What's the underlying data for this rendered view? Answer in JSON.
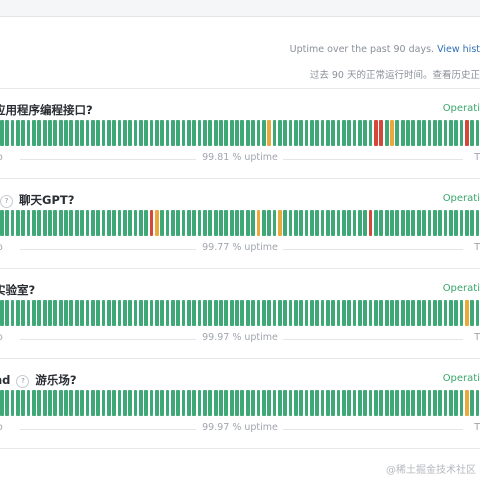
{
  "header": {
    "uptime_en": "Uptime over the past 90 days.",
    "view_history_en": "View hist",
    "uptime_zh": "过去 90 天的正常运行时间。查看历史正"
  },
  "colors": {
    "ok": "#3fa877",
    "minor": "#e9a93d",
    "major": "#d4483b"
  },
  "components": [
    {
      "name": "应用程序编程接口?",
      "has_help": false,
      "status": "Operati",
      "uptime": "99.81 % uptime",
      "left_label": "o",
      "right_label": "T",
      "days": [
        "ok",
        "ok",
        "ok",
        "ok",
        "ok",
        "ok",
        "ok",
        "ok",
        "ok",
        "ok",
        "ok",
        "ok",
        "ok",
        "ok",
        "ok",
        "ok",
        "ok",
        "ok",
        "ok",
        "ok",
        "ok",
        "ok",
        "ok",
        "ok",
        "ok",
        "ok",
        "ok",
        "ok",
        "ok",
        "ok",
        "ok",
        "ok",
        "ok",
        "ok",
        "ok",
        "ok",
        "ok",
        "ok",
        "ok",
        "ok",
        "ok",
        "ok",
        "ok",
        "ok",
        "ok",
        "ok",
        "ok",
        "ok",
        "ok",
        "ok",
        "minor",
        "ok",
        "ok",
        "ok",
        "ok",
        "ok",
        "ok",
        "ok",
        "ok",
        "ok",
        "ok",
        "ok",
        "ok",
        "ok",
        "ok",
        "ok",
        "ok",
        "ok",
        "ok",
        "ok",
        "major",
        "major",
        "ok",
        "minor",
        "ok",
        "ok",
        "ok",
        "ok",
        "ok",
        "ok",
        "ok",
        "ok",
        "ok",
        "ok",
        "ok",
        "ok",
        "ok",
        "major",
        "ok",
        "ok"
      ]
    },
    {
      "name": "聊天GPT?",
      "has_help": true,
      "status": "Operati",
      "uptime": "99.77 % uptime",
      "left_label": "o",
      "right_label": "T",
      "days": [
        "ok",
        "ok",
        "ok",
        "ok",
        "ok",
        "ok",
        "ok",
        "ok",
        "ok",
        "ok",
        "ok",
        "ok",
        "ok",
        "ok",
        "ok",
        "ok",
        "ok",
        "ok",
        "ok",
        "ok",
        "ok",
        "ok",
        "ok",
        "ok",
        "ok",
        "ok",
        "ok",
        "ok",
        "major",
        "minor",
        "ok",
        "ok",
        "ok",
        "ok",
        "ok",
        "ok",
        "ok",
        "ok",
        "ok",
        "ok",
        "ok",
        "ok",
        "ok",
        "ok",
        "ok",
        "ok",
        "ok",
        "ok",
        "minor",
        "ok",
        "ok",
        "ok",
        "minor",
        "ok",
        "ok",
        "ok",
        "ok",
        "ok",
        "ok",
        "ok",
        "ok",
        "ok",
        "ok",
        "ok",
        "ok",
        "ok",
        "ok",
        "ok",
        "ok",
        "major",
        "ok",
        "ok",
        "ok",
        "ok",
        "ok",
        "ok",
        "ok",
        "ok",
        "ok",
        "ok",
        "ok",
        "ok",
        "ok",
        "ok",
        "ok",
        "ok",
        "ok",
        "ok",
        "ok",
        "ok"
      ]
    },
    {
      "name": "实验室?",
      "has_help": false,
      "status": "Operati",
      "uptime": "99.97 % uptime",
      "left_label": "o",
      "right_label": "T",
      "days": [
        "ok",
        "ok",
        "ok",
        "ok",
        "ok",
        "ok",
        "ok",
        "ok",
        "ok",
        "ok",
        "ok",
        "ok",
        "ok",
        "ok",
        "ok",
        "ok",
        "ok",
        "ok",
        "ok",
        "ok",
        "ok",
        "ok",
        "ok",
        "ok",
        "ok",
        "ok",
        "ok",
        "ok",
        "ok",
        "ok",
        "ok",
        "ok",
        "ok",
        "ok",
        "ok",
        "ok",
        "ok",
        "ok",
        "ok",
        "ok",
        "ok",
        "ok",
        "ok",
        "ok",
        "ok",
        "ok",
        "ok",
        "ok",
        "ok",
        "ok",
        "ok",
        "ok",
        "ok",
        "ok",
        "ok",
        "ok",
        "ok",
        "ok",
        "ok",
        "ok",
        "ok",
        "ok",
        "ok",
        "ok",
        "ok",
        "ok",
        "ok",
        "ok",
        "ok",
        "ok",
        "ok",
        "ok",
        "ok",
        "ok",
        "ok",
        "ok",
        "ok",
        "ok",
        "ok",
        "ok",
        "ok",
        "ok",
        "ok",
        "ok",
        "ok",
        "ok",
        "ok",
        "minor",
        "ok",
        "ok"
      ]
    },
    {
      "name_prefix": "nd",
      "name": "游乐场?",
      "has_help": true,
      "status": "Operati",
      "uptime": "99.97 % uptime",
      "left_label": "o",
      "right_label": "T",
      "days": [
        "ok",
        "ok",
        "ok",
        "ok",
        "ok",
        "ok",
        "ok",
        "ok",
        "ok",
        "ok",
        "ok",
        "ok",
        "ok",
        "ok",
        "ok",
        "ok",
        "ok",
        "ok",
        "ok",
        "ok",
        "ok",
        "ok",
        "ok",
        "ok",
        "ok",
        "ok",
        "ok",
        "ok",
        "ok",
        "ok",
        "ok",
        "ok",
        "ok",
        "ok",
        "ok",
        "ok",
        "ok",
        "ok",
        "ok",
        "ok",
        "ok",
        "ok",
        "ok",
        "ok",
        "ok",
        "ok",
        "ok",
        "ok",
        "ok",
        "ok",
        "ok",
        "ok",
        "ok",
        "ok",
        "ok",
        "ok",
        "ok",
        "ok",
        "ok",
        "ok",
        "ok",
        "ok",
        "ok",
        "ok",
        "ok",
        "ok",
        "ok",
        "ok",
        "ok",
        "ok",
        "ok",
        "ok",
        "ok",
        "ok",
        "ok",
        "ok",
        "ok",
        "ok",
        "ok",
        "ok",
        "ok",
        "ok",
        "ok",
        "ok",
        "ok",
        "ok",
        "ok",
        "minor",
        "ok",
        "ok"
      ]
    }
  ],
  "watermark": "@稀土掘金技术社区"
}
